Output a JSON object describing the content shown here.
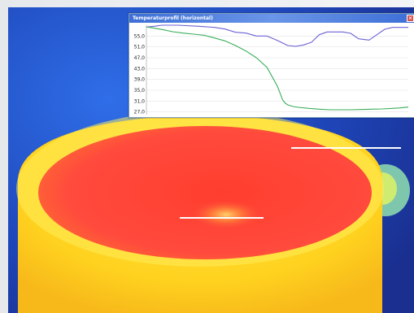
{
  "window": {
    "title": "Temperaturprofil (horizontal)",
    "close_label": "×"
  },
  "colors": {
    "series_1": "#6b62d6",
    "series_2": "#3aae5a",
    "title_bar": "#3d6fd6",
    "thermal_hot": "#ff4a3d",
    "thermal_warm": "#ffd21f",
    "thermal_cold": "#1f3fb6"
  },
  "chart_data": {
    "type": "line",
    "title": "",
    "xlabel": "",
    "ylabel": "",
    "y_ticks": [
      "55,0",
      "51,0",
      "47,0",
      "43,0",
      "39,0",
      "35,0",
      "31,0",
      "27,0"
    ],
    "ylim": [
      26.0,
      59.0
    ],
    "xlim": [
      0,
      100
    ],
    "grid": true,
    "series": [
      {
        "color": "#6b62d6",
        "x": [
          0,
          3,
          6,
          12,
          20,
          26,
          30,
          34,
          38,
          42,
          46,
          50,
          54,
          57,
          60,
          63,
          66,
          69,
          72,
          75,
          78,
          81,
          85,
          88,
          91,
          94,
          97,
          100
        ],
        "y": [
          58.3,
          58.6,
          59.0,
          59.0,
          58.6,
          58.2,
          57.6,
          56.4,
          56.1,
          55.0,
          55.0,
          53.4,
          51.5,
          51.2,
          51.7,
          52.7,
          55.5,
          56.5,
          56.5,
          56.5,
          56.0,
          54.0,
          53.5,
          55.5,
          57.5,
          58.2,
          58.2,
          58.2
        ]
      },
      {
        "color": "#3aae5a",
        "x": [
          0,
          3,
          6,
          10,
          14,
          18,
          22,
          26,
          30,
          34,
          38,
          42,
          46,
          48,
          50,
          51,
          52,
          53,
          54,
          56,
          58,
          62,
          66,
          70,
          74,
          78,
          82,
          86,
          90,
          94,
          97,
          100
        ],
        "y": [
          58.4,
          57.9,
          57.4,
          56.6,
          56.1,
          55.7,
          55.3,
          54.3,
          53.2,
          51.5,
          49.5,
          47.0,
          43.5,
          40.0,
          36.5,
          34.0,
          31.5,
          30.2,
          29.6,
          29.0,
          28.7,
          28.3,
          28.0,
          27.8,
          27.8,
          27.8,
          27.9,
          28.0,
          28.1,
          28.3,
          28.5,
          28.8
        ]
      }
    ]
  }
}
